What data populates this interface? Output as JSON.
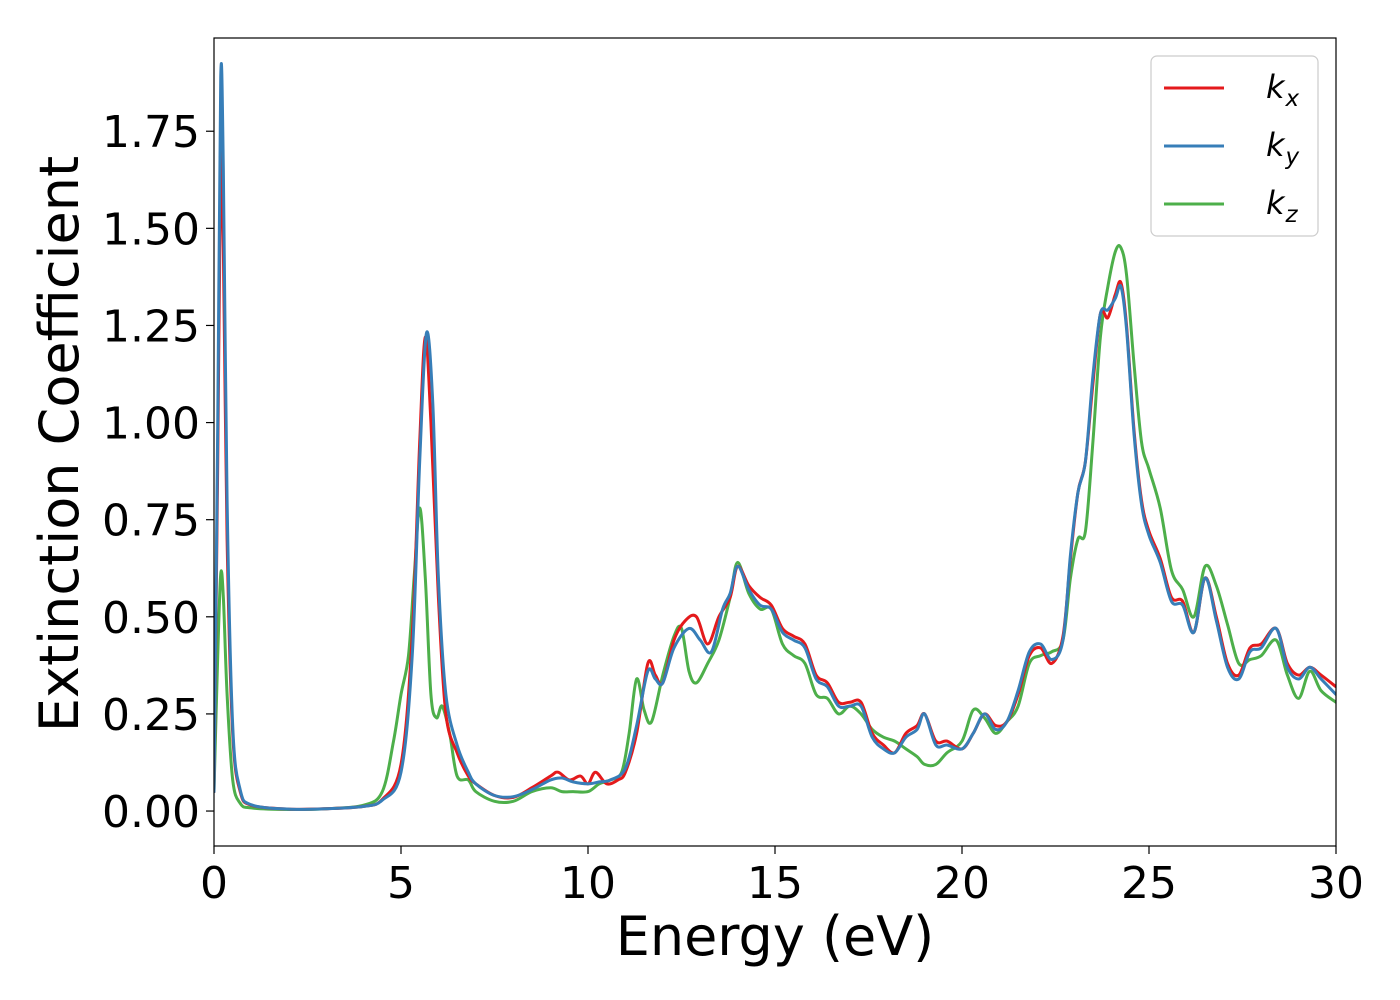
{
  "chart_data": {
    "type": "line",
    "title": "",
    "xlabel": "Energy (eV)",
    "ylabel": "Extinction Coefficient",
    "xlim": [
      0,
      30
    ],
    "ylim": [
      -0.09,
      1.99
    ],
    "xticks": [
      0,
      5,
      10,
      15,
      20,
      25,
      30
    ],
    "xtick_labels": [
      "0",
      "5",
      "10",
      "15",
      "20",
      "25",
      "30"
    ],
    "yticks": [
      0,
      0.25,
      0.5,
      0.75,
      1.0,
      1.25,
      1.5,
      1.75
    ],
    "ytick_labels": [
      "0.00",
      "0.25",
      "0.50",
      "0.75",
      "1.00",
      "1.25",
      "1.50",
      "1.75"
    ],
    "grid": false,
    "legend_position": "top-right",
    "series": [
      {
        "name": "k_x",
        "label_base": "k",
        "label_sub": "x",
        "color": "#e41a1c",
        "points": [
          [
            0,
            0.05
          ],
          [
            0.1,
            0.9
          ],
          [
            0.18,
            1.68
          ],
          [
            0.25,
            1.45
          ],
          [
            0.35,
            0.7
          ],
          [
            0.5,
            0.2
          ],
          [
            0.7,
            0.05
          ],
          [
            1.0,
            0.015
          ],
          [
            2.0,
            0.005
          ],
          [
            3.0,
            0.006
          ],
          [
            4.0,
            0.012
          ],
          [
            4.5,
            0.03
          ],
          [
            5.0,
            0.12
          ],
          [
            5.3,
            0.45
          ],
          [
            5.5,
            0.95
          ],
          [
            5.65,
            1.22
          ],
          [
            5.8,
            1.0
          ],
          [
            6.0,
            0.55
          ],
          [
            6.2,
            0.25
          ],
          [
            6.5,
            0.15
          ],
          [
            6.8,
            0.09
          ],
          [
            7.0,
            0.07
          ],
          [
            7.5,
            0.04
          ],
          [
            8.0,
            0.035
          ],
          [
            8.5,
            0.06
          ],
          [
            9.0,
            0.09
          ],
          [
            9.2,
            0.1
          ],
          [
            9.5,
            0.08
          ],
          [
            9.8,
            0.09
          ],
          [
            10.0,
            0.07
          ],
          [
            10.2,
            0.1
          ],
          [
            10.5,
            0.07
          ],
          [
            10.8,
            0.08
          ],
          [
            11.0,
            0.1
          ],
          [
            11.3,
            0.2
          ],
          [
            11.6,
            0.38
          ],
          [
            11.8,
            0.35
          ],
          [
            12.0,
            0.33
          ],
          [
            12.3,
            0.44
          ],
          [
            12.6,
            0.49
          ],
          [
            12.9,
            0.5
          ],
          [
            13.2,
            0.43
          ],
          [
            13.5,
            0.5
          ],
          [
            13.8,
            0.55
          ],
          [
            14.0,
            0.63
          ],
          [
            14.3,
            0.58
          ],
          [
            14.6,
            0.55
          ],
          [
            14.9,
            0.53
          ],
          [
            15.2,
            0.47
          ],
          [
            15.5,
            0.45
          ],
          [
            15.8,
            0.43
          ],
          [
            16.1,
            0.35
          ],
          [
            16.4,
            0.33
          ],
          [
            16.7,
            0.28
          ],
          [
            17.0,
            0.28
          ],
          [
            17.3,
            0.28
          ],
          [
            17.6,
            0.2
          ],
          [
            17.9,
            0.17
          ],
          [
            18.2,
            0.15
          ],
          [
            18.5,
            0.2
          ],
          [
            18.8,
            0.22
          ],
          [
            19.0,
            0.25
          ],
          [
            19.3,
            0.18
          ],
          [
            19.6,
            0.18
          ],
          [
            20.0,
            0.16
          ],
          [
            20.3,
            0.2
          ],
          [
            20.6,
            0.25
          ],
          [
            20.9,
            0.22
          ],
          [
            21.2,
            0.23
          ],
          [
            21.5,
            0.3
          ],
          [
            21.8,
            0.4
          ],
          [
            22.1,
            0.42
          ],
          [
            22.4,
            0.38
          ],
          [
            22.7,
            0.45
          ],
          [
            22.9,
            0.65
          ],
          [
            23.1,
            0.82
          ],
          [
            23.3,
            0.9
          ],
          [
            23.5,
            1.1
          ],
          [
            23.7,
            1.28
          ],
          [
            23.9,
            1.27
          ],
          [
            24.1,
            1.33
          ],
          [
            24.25,
            1.36
          ],
          [
            24.4,
            1.25
          ],
          [
            24.6,
            0.98
          ],
          [
            24.8,
            0.8
          ],
          [
            25.0,
            0.72
          ],
          [
            25.3,
            0.65
          ],
          [
            25.6,
            0.55
          ],
          [
            25.9,
            0.54
          ],
          [
            26.2,
            0.46
          ],
          [
            26.5,
            0.6
          ],
          [
            26.8,
            0.5
          ],
          [
            27.1,
            0.38
          ],
          [
            27.4,
            0.35
          ],
          [
            27.7,
            0.42
          ],
          [
            28.0,
            0.43
          ],
          [
            28.4,
            0.47
          ],
          [
            28.7,
            0.38
          ],
          [
            29.0,
            0.35
          ],
          [
            29.3,
            0.37
          ],
          [
            29.6,
            0.35
          ],
          [
            30.0,
            0.32
          ]
        ]
      },
      {
        "name": "k_y",
        "label_base": "k",
        "label_sub": "y",
        "color": "#377eb8",
        "points": [
          [
            0,
            0.05
          ],
          [
            0.1,
            1.0
          ],
          [
            0.18,
            1.89
          ],
          [
            0.25,
            1.65
          ],
          [
            0.35,
            0.8
          ],
          [
            0.5,
            0.22
          ],
          [
            0.7,
            0.055
          ],
          [
            1.0,
            0.016
          ],
          [
            2.0,
            0.005
          ],
          [
            3.0,
            0.006
          ],
          [
            4.0,
            0.012
          ],
          [
            4.5,
            0.028
          ],
          [
            5.0,
            0.1
          ],
          [
            5.3,
            0.4
          ],
          [
            5.5,
            0.9
          ],
          [
            5.68,
            1.23
          ],
          [
            5.85,
            1.05
          ],
          [
            6.0,
            0.6
          ],
          [
            6.2,
            0.3
          ],
          [
            6.5,
            0.17
          ],
          [
            6.8,
            0.1
          ],
          [
            7.0,
            0.07
          ],
          [
            7.5,
            0.04
          ],
          [
            8.0,
            0.037
          ],
          [
            8.5,
            0.055
          ],
          [
            9.0,
            0.08
          ],
          [
            9.3,
            0.085
          ],
          [
            9.6,
            0.075
          ],
          [
            10.0,
            0.07
          ],
          [
            10.3,
            0.075
          ],
          [
            10.6,
            0.08
          ],
          [
            11.0,
            0.11
          ],
          [
            11.3,
            0.22
          ],
          [
            11.6,
            0.36
          ],
          [
            11.8,
            0.34
          ],
          [
            12.0,
            0.33
          ],
          [
            12.3,
            0.42
          ],
          [
            12.7,
            0.47
          ],
          [
            13.0,
            0.44
          ],
          [
            13.3,
            0.41
          ],
          [
            13.6,
            0.52
          ],
          [
            13.8,
            0.56
          ],
          [
            14.0,
            0.63
          ],
          [
            14.3,
            0.57
          ],
          [
            14.6,
            0.53
          ],
          [
            14.9,
            0.52
          ],
          [
            15.2,
            0.46
          ],
          [
            15.5,
            0.44
          ],
          [
            15.8,
            0.42
          ],
          [
            16.1,
            0.34
          ],
          [
            16.4,
            0.32
          ],
          [
            16.7,
            0.27
          ],
          [
            17.0,
            0.27
          ],
          [
            17.3,
            0.27
          ],
          [
            17.6,
            0.19
          ],
          [
            17.9,
            0.16
          ],
          [
            18.2,
            0.15
          ],
          [
            18.5,
            0.19
          ],
          [
            18.8,
            0.21
          ],
          [
            19.0,
            0.25
          ],
          [
            19.3,
            0.17
          ],
          [
            19.6,
            0.17
          ],
          [
            20.0,
            0.16
          ],
          [
            20.3,
            0.2
          ],
          [
            20.6,
            0.25
          ],
          [
            20.9,
            0.21
          ],
          [
            21.2,
            0.23
          ],
          [
            21.5,
            0.31
          ],
          [
            21.8,
            0.41
          ],
          [
            22.1,
            0.43
          ],
          [
            22.4,
            0.39
          ],
          [
            22.7,
            0.44
          ],
          [
            22.9,
            0.66
          ],
          [
            23.1,
            0.82
          ],
          [
            23.3,
            0.9
          ],
          [
            23.5,
            1.12
          ],
          [
            23.7,
            1.28
          ],
          [
            23.9,
            1.29
          ],
          [
            24.1,
            1.32
          ],
          [
            24.25,
            1.35
          ],
          [
            24.4,
            1.24
          ],
          [
            24.6,
            0.97
          ],
          [
            24.8,
            0.79
          ],
          [
            25.0,
            0.71
          ],
          [
            25.3,
            0.64
          ],
          [
            25.6,
            0.54
          ],
          [
            25.9,
            0.53
          ],
          [
            26.2,
            0.46
          ],
          [
            26.5,
            0.6
          ],
          [
            26.8,
            0.49
          ],
          [
            27.1,
            0.37
          ],
          [
            27.4,
            0.34
          ],
          [
            27.7,
            0.41
          ],
          [
            28.0,
            0.42
          ],
          [
            28.4,
            0.47
          ],
          [
            28.7,
            0.37
          ],
          [
            29.0,
            0.34
          ],
          [
            29.3,
            0.37
          ],
          [
            29.6,
            0.34
          ],
          [
            30.0,
            0.3
          ]
        ]
      },
      {
        "name": "k_z",
        "label_base": "k",
        "label_sub": "z",
        "color": "#4daf4a",
        "points": [
          [
            0,
            0.05
          ],
          [
            0.1,
            0.4
          ],
          [
            0.18,
            0.61
          ],
          [
            0.25,
            0.55
          ],
          [
            0.35,
            0.3
          ],
          [
            0.5,
            0.08
          ],
          [
            0.7,
            0.02
          ],
          [
            1.0,
            0.008
          ],
          [
            2.0,
            0.004
          ],
          [
            3.0,
            0.006
          ],
          [
            4.0,
            0.015
          ],
          [
            4.5,
            0.05
          ],
          [
            4.8,
            0.18
          ],
          [
            5.0,
            0.3
          ],
          [
            5.2,
            0.4
          ],
          [
            5.35,
            0.6
          ],
          [
            5.5,
            0.78
          ],
          [
            5.65,
            0.6
          ],
          [
            5.8,
            0.3
          ],
          [
            5.95,
            0.24
          ],
          [
            6.1,
            0.27
          ],
          [
            6.3,
            0.2
          ],
          [
            6.5,
            0.09
          ],
          [
            6.8,
            0.08
          ],
          [
            7.0,
            0.05
          ],
          [
            7.5,
            0.025
          ],
          [
            8.0,
            0.025
          ],
          [
            8.5,
            0.05
          ],
          [
            9.0,
            0.06
          ],
          [
            9.3,
            0.05
          ],
          [
            9.6,
            0.05
          ],
          [
            10.0,
            0.05
          ],
          [
            10.3,
            0.07
          ],
          [
            10.6,
            0.08
          ],
          [
            10.9,
            0.1
          ],
          [
            11.1,
            0.2
          ],
          [
            11.3,
            0.34
          ],
          [
            11.5,
            0.26
          ],
          [
            11.7,
            0.23
          ],
          [
            12.0,
            0.35
          ],
          [
            12.3,
            0.45
          ],
          [
            12.5,
            0.47
          ],
          [
            12.7,
            0.36
          ],
          [
            12.9,
            0.33
          ],
          [
            13.2,
            0.38
          ],
          [
            13.5,
            0.44
          ],
          [
            13.8,
            0.55
          ],
          [
            14.0,
            0.64
          ],
          [
            14.3,
            0.56
          ],
          [
            14.6,
            0.52
          ],
          [
            14.9,
            0.52
          ],
          [
            15.2,
            0.43
          ],
          [
            15.5,
            0.4
          ],
          [
            15.8,
            0.38
          ],
          [
            16.1,
            0.3
          ],
          [
            16.4,
            0.29
          ],
          [
            16.7,
            0.25
          ],
          [
            17.0,
            0.27
          ],
          [
            17.3,
            0.25
          ],
          [
            17.6,
            0.21
          ],
          [
            17.9,
            0.19
          ],
          [
            18.2,
            0.18
          ],
          [
            18.5,
            0.16
          ],
          [
            18.8,
            0.14
          ],
          [
            19.0,
            0.12
          ],
          [
            19.3,
            0.12
          ],
          [
            19.6,
            0.15
          ],
          [
            20.0,
            0.18
          ],
          [
            20.3,
            0.26
          ],
          [
            20.6,
            0.24
          ],
          [
            20.9,
            0.2
          ],
          [
            21.2,
            0.23
          ],
          [
            21.5,
            0.27
          ],
          [
            21.8,
            0.38
          ],
          [
            22.1,
            0.4
          ],
          [
            22.4,
            0.41
          ],
          [
            22.7,
            0.44
          ],
          [
            22.9,
            0.6
          ],
          [
            23.1,
            0.7
          ],
          [
            23.3,
            0.72
          ],
          [
            23.5,
            0.95
          ],
          [
            23.7,
            1.22
          ],
          [
            23.9,
            1.35
          ],
          [
            24.1,
            1.44
          ],
          [
            24.25,
            1.45
          ],
          [
            24.4,
            1.38
          ],
          [
            24.6,
            1.15
          ],
          [
            24.8,
            0.95
          ],
          [
            25.0,
            0.88
          ],
          [
            25.3,
            0.78
          ],
          [
            25.6,
            0.62
          ],
          [
            25.9,
            0.57
          ],
          [
            26.2,
            0.5
          ],
          [
            26.5,
            0.63
          ],
          [
            26.8,
            0.58
          ],
          [
            27.1,
            0.48
          ],
          [
            27.4,
            0.38
          ],
          [
            27.7,
            0.39
          ],
          [
            28.0,
            0.4
          ],
          [
            28.4,
            0.44
          ],
          [
            28.7,
            0.35
          ],
          [
            29.0,
            0.29
          ],
          [
            29.3,
            0.36
          ],
          [
            29.6,
            0.31
          ],
          [
            30.0,
            0.28
          ]
        ]
      }
    ]
  }
}
